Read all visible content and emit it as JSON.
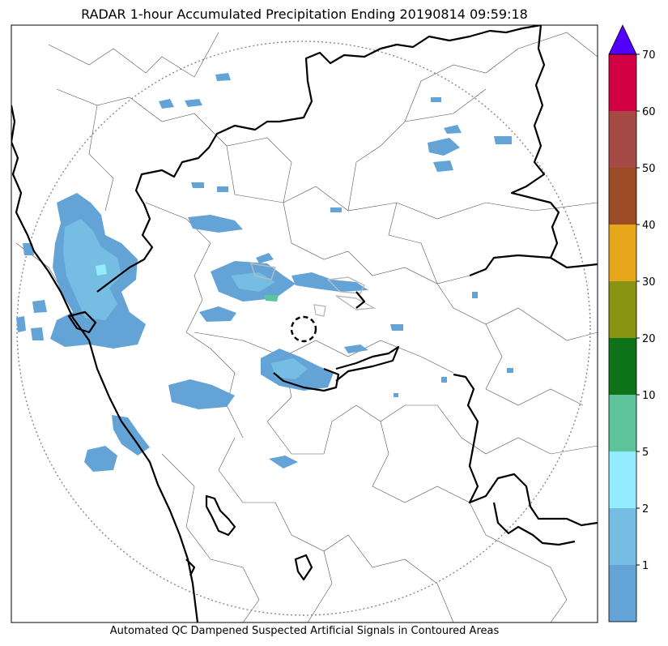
{
  "title": "RADAR 1-hour Accumulated Precipitation Ending 20190814 09:59:18",
  "footer": "Automated QC Dampened Suspected Artificial Signals in Contoured Areas",
  "colorbar": {
    "levels": [
      {
        "color": "#64a3d6",
        "label": ""
      },
      {
        "color": "#75bde3",
        "label": "1"
      },
      {
        "color": "#93ecfe",
        "label": "2"
      },
      {
        "color": "#5cc39b",
        "label": "5"
      },
      {
        "color": "#0e7219",
        "label": "10"
      },
      {
        "color": "#899413",
        "label": "20"
      },
      {
        "color": "#e6a71b",
        "label": "30"
      },
      {
        "color": "#9b4c25",
        "label": "40"
      },
      {
        "color": "#a64a45",
        "label": "50"
      },
      {
        "color": "#d20044",
        "label": "60"
      }
    ],
    "top_label": "70",
    "extend_color": "#5200ff"
  },
  "precip_colors": {
    "light": "#64a3d6",
    "medium": "#75bde3",
    "heavy": "#93ecfe",
    "green": "#5cc39b"
  },
  "map_colors": {
    "border": "#000000",
    "district": "#555555",
    "range_ring": "#888888"
  }
}
